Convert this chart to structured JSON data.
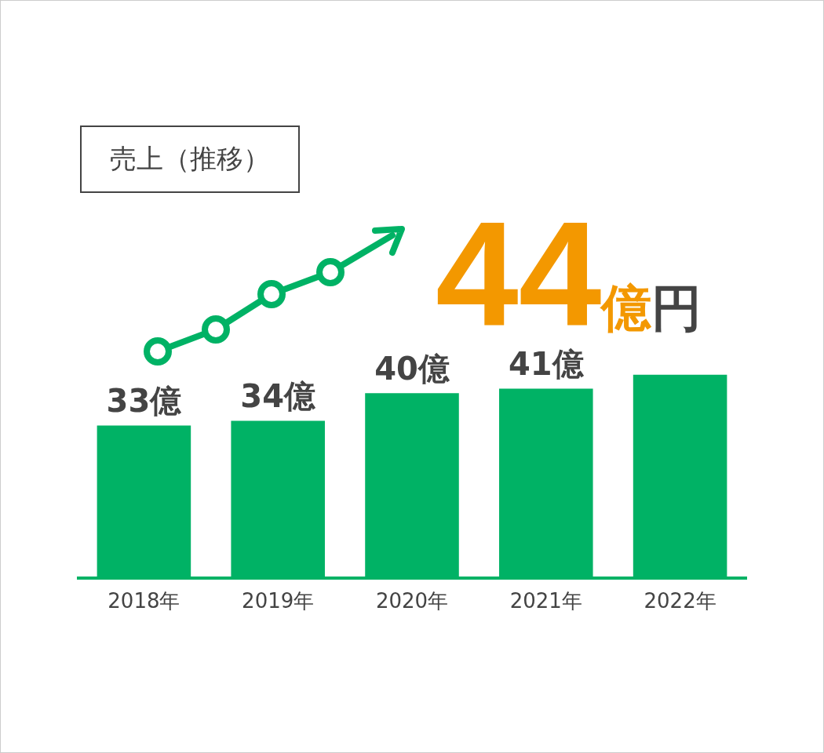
{
  "chart_data": {
    "type": "bar",
    "title": "売上（推移）",
    "categories": [
      "2018年",
      "2019年",
      "2020年",
      "2021年",
      "2022年"
    ],
    "values": [
      33,
      34,
      40,
      41,
      44
    ],
    "color": "#00b265",
    "value_labels": [
      "33億",
      "34億",
      "40億",
      "41億",
      null
    ],
    "annotations": [
      "44億円"
    ],
    "grid": false,
    "legend": false
  }
}
